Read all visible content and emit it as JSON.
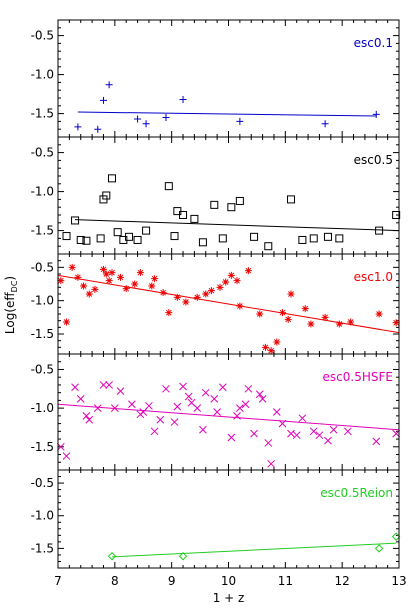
{
  "xlabel": "1 + z",
  "ylabel": "Log(eff",
  "ylabel_sub": "DC",
  "ylabel_close": ")",
  "xticks": [
    7,
    8,
    9,
    10,
    11,
    12,
    13
  ],
  "yticks": [
    -0.5,
    -1.0,
    -1.5
  ],
  "ytick_labels": [
    "-0.5",
    "-1.0",
    "-1.5"
  ],
  "xtick_labels": [
    "7",
    "8",
    "9",
    "10",
    "11",
    "12",
    "13"
  ],
  "chart_data": [
    {
      "type": "scatter",
      "label": "esc0.1",
      "color": "#0000cc",
      "marker": "plus",
      "xlim": [
        7,
        13
      ],
      "ylim": [
        -1.8,
        -0.3
      ],
      "points": [
        [
          7.35,
          -1.67
        ],
        [
          7.7,
          -1.7
        ],
        [
          7.8,
          -1.33
        ],
        [
          7.9,
          -1.13
        ],
        [
          8.4,
          -1.57
        ],
        [
          8.55,
          -1.63
        ],
        [
          8.9,
          -1.55
        ],
        [
          9.2,
          -1.32
        ],
        [
          10.2,
          -1.6
        ],
        [
          11.7,
          -1.63
        ],
        [
          12.6,
          -1.51
        ]
      ],
      "fit": [
        [
          7.35,
          -1.48
        ],
        [
          12.6,
          -1.53
        ]
      ]
    },
    {
      "type": "scatter",
      "label": "esc0.5",
      "color": "#000000",
      "marker": "square",
      "xlim": [
        7,
        13
      ],
      "ylim": [
        -1.8,
        -0.3
      ],
      "points": [
        [
          7.15,
          -1.57
        ],
        [
          7.3,
          -1.37
        ],
        [
          7.4,
          -1.62
        ],
        [
          7.5,
          -1.63
        ],
        [
          7.75,
          -1.6
        ],
        [
          7.8,
          -1.1
        ],
        [
          7.85,
          -1.05
        ],
        [
          7.95,
          -0.83
        ],
        [
          8.05,
          -1.52
        ],
        [
          8.15,
          -1.62
        ],
        [
          8.25,
          -1.58
        ],
        [
          8.4,
          -1.62
        ],
        [
          8.55,
          -1.5
        ],
        [
          8.95,
          -0.93
        ],
        [
          9.05,
          -1.57
        ],
        [
          9.1,
          -1.25
        ],
        [
          9.2,
          -1.3
        ],
        [
          9.4,
          -1.35
        ],
        [
          9.55,
          -1.65
        ],
        [
          9.75,
          -1.17
        ],
        [
          9.9,
          -1.6
        ],
        [
          10.05,
          -1.2
        ],
        [
          10.2,
          -1.12
        ],
        [
          10.45,
          -1.58
        ],
        [
          10.7,
          -1.7
        ],
        [
          11.1,
          -1.1
        ],
        [
          11.3,
          -1.62
        ],
        [
          11.5,
          -1.6
        ],
        [
          11.75,
          -1.58
        ],
        [
          11.95,
          -1.6
        ],
        [
          12.65,
          -1.5
        ],
        [
          12.95,
          -1.3
        ]
      ],
      "fit": [
        [
          7.3,
          -1.36
        ],
        [
          13.0,
          -1.5
        ]
      ]
    },
    {
      "type": "scatter",
      "label": "esc1.0",
      "color": "#ee0000",
      "marker": "star",
      "xlim": [
        7,
        13
      ],
      "ylim": [
        -1.8,
        -0.3
      ],
      "points": [
        [
          7.05,
          -0.7
        ],
        [
          7.15,
          -1.32
        ],
        [
          7.25,
          -0.5
        ],
        [
          7.35,
          -0.65
        ],
        [
          7.45,
          -0.78
        ],
        [
          7.55,
          -0.9
        ],
        [
          7.65,
          -0.83
        ],
        [
          7.8,
          -0.53
        ],
        [
          7.85,
          -0.6
        ],
        [
          7.9,
          -0.7
        ],
        [
          7.95,
          -0.58
        ],
        [
          8.1,
          -0.65
        ],
        [
          8.2,
          -0.82
        ],
        [
          8.35,
          -0.75
        ],
        [
          8.45,
          -0.58
        ],
        [
          8.65,
          -0.78
        ],
        [
          8.7,
          -0.67
        ],
        [
          8.85,
          -0.88
        ],
        [
          8.95,
          -1.18
        ],
        [
          9.1,
          -0.95
        ],
        [
          9.25,
          -1.02
        ],
        [
          9.45,
          -0.95
        ],
        [
          9.6,
          -0.9
        ],
        [
          9.7,
          -0.85
        ],
        [
          9.85,
          -0.8
        ],
        [
          9.95,
          -0.72
        ],
        [
          10.05,
          -0.62
        ],
        [
          10.15,
          -0.7
        ],
        [
          10.2,
          -1.08
        ],
        [
          10.35,
          -0.55
        ],
        [
          10.55,
          -1.2
        ],
        [
          10.65,
          -1.7
        ],
        [
          10.75,
          -1.75
        ],
        [
          10.85,
          -1.62
        ],
        [
          10.95,
          -1.18
        ],
        [
          11.05,
          -1.28
        ],
        [
          11.1,
          -0.9
        ],
        [
          11.35,
          -1.12
        ],
        [
          11.45,
          -1.35
        ],
        [
          11.7,
          -1.25
        ],
        [
          11.95,
          -1.35
        ],
        [
          12.15,
          -1.32
        ],
        [
          12.65,
          -1.2
        ],
        [
          12.95,
          -1.33
        ]
      ],
      "fit": [
        [
          7.0,
          -0.62
        ],
        [
          13.0,
          -1.48
        ]
      ]
    },
    {
      "type": "scatter",
      "label": "esc0.5HSFE",
      "color": "#e000b8",
      "marker": "cross",
      "xlim": [
        7,
        13
      ],
      "ylim": [
        -1.8,
        -0.3
      ],
      "points": [
        [
          7.05,
          -1.5
        ],
        [
          7.15,
          -1.62
        ],
        [
          7.3,
          -0.73
        ],
        [
          7.4,
          -0.88
        ],
        [
          7.5,
          -1.1
        ],
        [
          7.55,
          -1.15
        ],
        [
          7.7,
          -1.0
        ],
        [
          7.8,
          -0.7
        ],
        [
          7.9,
          -0.7
        ],
        [
          8.0,
          -1.0
        ],
        [
          8.1,
          -0.78
        ],
        [
          8.3,
          -0.95
        ],
        [
          8.45,
          -1.08
        ],
        [
          8.5,
          -1.05
        ],
        [
          8.6,
          -0.97
        ],
        [
          8.7,
          -1.3
        ],
        [
          8.8,
          -1.15
        ],
        [
          8.9,
          -0.75
        ],
        [
          9.05,
          -1.18
        ],
        [
          9.1,
          -0.98
        ],
        [
          9.2,
          -0.72
        ],
        [
          9.3,
          -0.85
        ],
        [
          9.35,
          -0.93
        ],
        [
          9.45,
          -1.0
        ],
        [
          9.55,
          -1.28
        ],
        [
          9.6,
          -0.8
        ],
        [
          9.75,
          -0.88
        ],
        [
          9.8,
          -1.05
        ],
        [
          9.9,
          -0.73
        ],
        [
          10.05,
          -1.38
        ],
        [
          10.15,
          -1.1
        ],
        [
          10.2,
          -1.0
        ],
        [
          10.3,
          -0.95
        ],
        [
          10.35,
          -0.75
        ],
        [
          10.45,
          -1.33
        ],
        [
          10.55,
          -0.82
        ],
        [
          10.6,
          -0.88
        ],
        [
          10.7,
          -1.45
        ],
        [
          10.75,
          -1.72
        ],
        [
          10.85,
          -1.05
        ],
        [
          10.95,
          -1.2
        ],
        [
          11.1,
          -1.33
        ],
        [
          11.2,
          -1.35
        ],
        [
          11.3,
          -1.13
        ],
        [
          11.5,
          -1.3
        ],
        [
          11.6,
          -1.35
        ],
        [
          11.75,
          -1.42
        ],
        [
          11.85,
          -1.28
        ],
        [
          12.1,
          -1.3
        ],
        [
          12.6,
          -1.43
        ],
        [
          12.95,
          -1.33
        ]
      ],
      "fit": [
        [
          7.0,
          -0.95
        ],
        [
          13.0,
          -1.28
        ]
      ]
    },
    {
      "type": "scatter",
      "label": "esc0.5Reion",
      "color": "#22cc22",
      "marker": "diamond",
      "xlim": [
        7,
        13
      ],
      "ylim": [
        -1.8,
        -0.3
      ],
      "points": [
        [
          7.95,
          -1.62
        ],
        [
          9.2,
          -1.62
        ],
        [
          12.65,
          -1.5
        ],
        [
          12.95,
          -1.32
        ]
      ],
      "fit": [
        [
          7.95,
          -1.63
        ],
        [
          12.95,
          -1.42
        ]
      ]
    }
  ]
}
